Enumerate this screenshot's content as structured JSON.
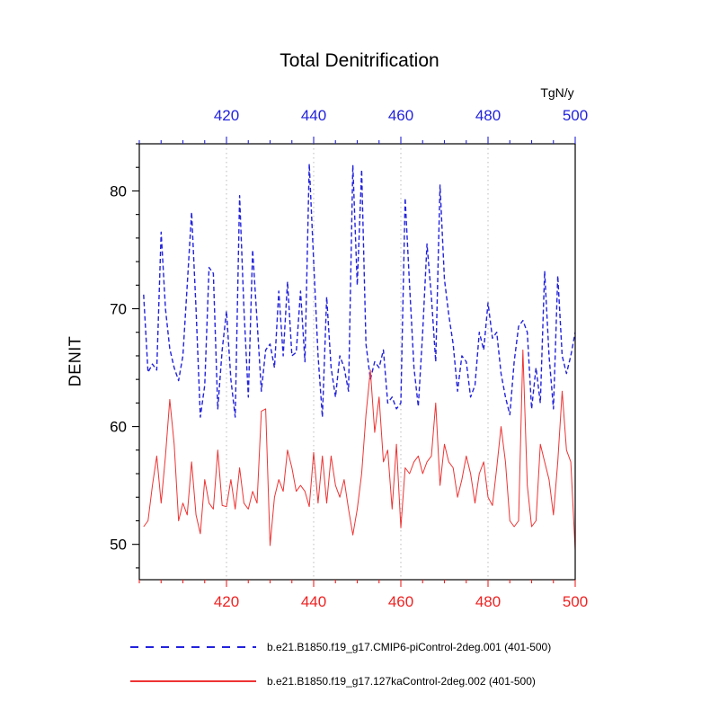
{
  "chart_data": {
    "type": "line",
    "title": "Total Denitrification",
    "ylabel": "DENIT",
    "units_label": "TgN/y",
    "xlim": [
      400,
      500
    ],
    "ylim": [
      47,
      84
    ],
    "x_ticks": [
      420,
      440,
      460,
      480,
      500
    ],
    "y_ticks": [
      50,
      60,
      70,
      80
    ],
    "x_minor_step": 5,
    "y_minor_step": 2,
    "grid_x": [
      420,
      440,
      460,
      480
    ],
    "grid_color": "#bbbbbb",
    "axis_colors": {
      "bottom": "#ee2222",
      "top": "#2222dd",
      "left": "#000000",
      "frame": "#000000"
    },
    "x_start": 401,
    "series": [
      {
        "name": "b.e21.B1850.f19_g17.CMIP6-piControl-2deg.001 (401-500)",
        "color": "#2222dd",
        "style": "dashed",
        "values": [
          71.2,
          64.6,
          65.3,
          64.8,
          76.5,
          70.0,
          66.6,
          65.0,
          63.9,
          66.0,
          72.0,
          78.2,
          70.0,
          60.8,
          63.5,
          73.5,
          73.0,
          61.5,
          66.5,
          69.8,
          64.0,
          60.8,
          79.6,
          70.0,
          62.5,
          75.0,
          69.0,
          63.0,
          66.5,
          67.0,
          65.0,
          71.5,
          66.0,
          72.3,
          66.0,
          66.3,
          71.5,
          65.5,
          82.3,
          74.0,
          66.0,
          60.8,
          71.0,
          65.0,
          62.5,
          66.0,
          65.0,
          63.0,
          82.2,
          72.0,
          81.8,
          67.0,
          64.0,
          65.5,
          65.0,
          66.5,
          62.0,
          62.5,
          61.5,
          62.0,
          79.4,
          72.0,
          65.0,
          61.7,
          68.0,
          75.5,
          71.0,
          65.5,
          80.5,
          72.5,
          69.5,
          67.0,
          63.0,
          66.0,
          65.5,
          62.5,
          63.5,
          68.0,
          66.5,
          70.5,
          67.5,
          68.0,
          64.5,
          62.5,
          61.0,
          65.5,
          68.5,
          69.0,
          68.0,
          61.5,
          65.0,
          62.0,
          73.2,
          66.0,
          61.5,
          72.8,
          66.0,
          64.5,
          66.0,
          68.0
        ]
      },
      {
        "name": "b.e21.B1850.f19_g17.127kaControl-2deg.002 (401-500)",
        "color": "#ee3333",
        "style": "solid",
        "values": [
          51.5,
          52.0,
          55.0,
          57.5,
          53.5,
          57.5,
          62.3,
          58.5,
          52.0,
          53.5,
          52.5,
          57.0,
          52.5,
          50.9,
          55.5,
          53.5,
          53.0,
          58.0,
          53.3,
          53.2,
          55.5,
          53.0,
          56.5,
          53.5,
          53.0,
          54.5,
          53.5,
          61.3,
          61.5,
          49.9,
          54.0,
          55.5,
          54.5,
          58.0,
          56.5,
          54.5,
          55.0,
          54.5,
          53.2,
          57.8,
          53.5,
          57.5,
          53.5,
          57.5,
          55.0,
          54.0,
          55.5,
          53.0,
          50.8,
          53.0,
          56.0,
          61.0,
          64.8,
          59.5,
          62.5,
          57.0,
          58.0,
          53.0,
          58.5,
          51.4,
          56.5,
          56.0,
          57.0,
          57.5,
          56.0,
          57.0,
          57.5,
          62.0,
          55.0,
          58.5,
          57.0,
          56.5,
          54.0,
          55.5,
          57.5,
          56.0,
          53.5,
          56.0,
          57.0,
          54.0,
          53.3,
          56.5,
          60.0,
          57.0,
          52.0,
          51.5,
          52.0,
          66.5,
          55.0,
          51.5,
          52.0,
          58.5,
          57.0,
          55.5,
          52.5,
          57.0,
          63.0,
          58.0,
          57.0,
          49.5
        ]
      }
    ]
  }
}
